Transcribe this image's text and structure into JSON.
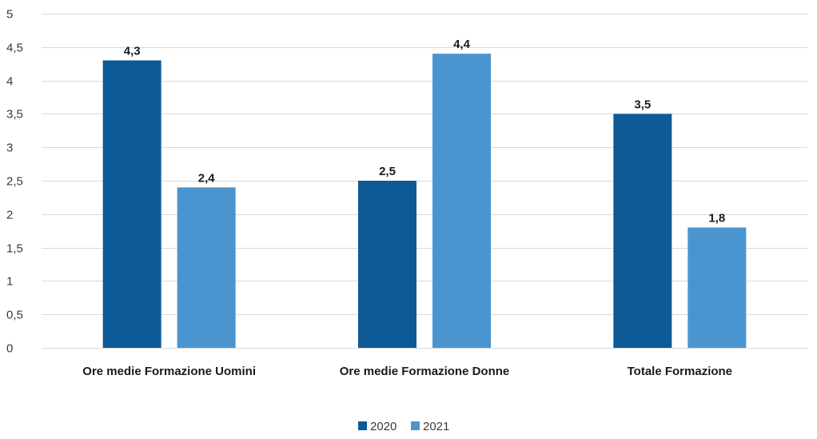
{
  "chart_data": {
    "type": "bar",
    "title": "",
    "xlabel": "",
    "ylabel": "",
    "categories": [
      "Ore medie Formazione Uomini",
      "Ore medie Formazione Donne",
      "Totale Formazione"
    ],
    "series": [
      {
        "name": "2020",
        "color": "#0e5a96",
        "values": [
          4.3,
          2.5,
          3.5
        ],
        "labels": [
          "4,3",
          "2,5",
          "3,5"
        ]
      },
      {
        "name": "2021",
        "color": "#4a94d0",
        "values": [
          2.4,
          4.4,
          1.8
        ],
        "labels": [
          "2,4",
          "4,4",
          "1,8"
        ]
      }
    ],
    "ylim": [
      0,
      5
    ],
    "yticks": [
      0,
      0.5,
      1,
      1.5,
      2,
      2.5,
      3,
      3.5,
      4,
      4.5,
      5
    ],
    "ytick_labels": [
      "0",
      "0,5",
      "1",
      "1,5",
      "2",
      "2,5",
      "3",
      "3,5",
      "4",
      "4,5",
      "5"
    ],
    "grid": true,
    "legend_position": "bottom"
  }
}
